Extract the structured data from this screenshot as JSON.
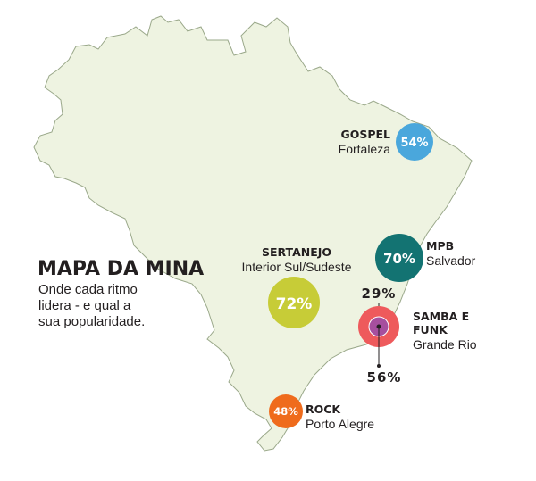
{
  "title": "MAPA DA MINA",
  "description": [
    "Onde cada ritmo",
    "lidera - e qual a",
    "sua popularidade."
  ],
  "colors": {
    "land": "#eef3e1",
    "border": "#9aa88a",
    "gospel": "#4aa7dc",
    "mpb": "#137372",
    "sertanejo": "#c7cc37",
    "rock": "#ef6b1c",
    "samba_outer": "#ee5a5c",
    "samba_inner": "#a64f9e"
  },
  "regions": [
    {
      "id": "gospel",
      "genre": "GOSPEL",
      "place": "Fortaleza",
      "percent": "54%"
    },
    {
      "id": "mpb",
      "genre": "MPB",
      "place": "Salvador",
      "percent": "70%"
    },
    {
      "id": "sertanejo",
      "genre": "SERTANEJO",
      "place": "Interior Sul/Sudeste",
      "percent": "72%"
    },
    {
      "id": "samba",
      "genre_lines": [
        "SAMBA E",
        "FUNK"
      ],
      "place": "Grande Rio",
      "percent_inner": "29%",
      "percent_outer": "56%"
    },
    {
      "id": "rock",
      "genre": "ROCK",
      "place": "Porto Alegre",
      "percent": "48%"
    }
  ]
}
